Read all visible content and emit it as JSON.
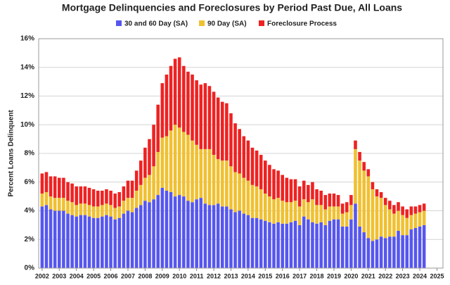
{
  "chart_data": {
    "type": "stacked_bar",
    "title": "Mortgage Delinquencies and Foreclosures by Period Past Due, All Loans",
    "y_label": "Percent Loans Delinquent",
    "legend": "top",
    "grid": true,
    "x": [
      2002,
      2002.25,
      2002.5,
      2002.75,
      2003,
      2003.25,
      2003.5,
      2003.75,
      2004,
      2004.25,
      2004.5,
      2004.75,
      2005,
      2005.25,
      2005.5,
      2005.75,
      2006,
      2006.25,
      2006.5,
      2006.75,
      2007,
      2007.25,
      2007.5,
      2007.75,
      2008,
      2008.25,
      2008.5,
      2008.75,
      2009,
      2009.25,
      2009.5,
      2009.75,
      2010,
      2010.25,
      2010.5,
      2010.75,
      2011,
      2011.25,
      2011.5,
      2011.75,
      2012,
      2012.25,
      2012.5,
      2012.75,
      2013,
      2013.25,
      2013.5,
      2013.75,
      2014,
      2014.25,
      2014.5,
      2014.75,
      2015,
      2015.25,
      2015.5,
      2015.75,
      2016,
      2016.25,
      2016.5,
      2016.75,
      2017,
      2017.25,
      2017.5,
      2017.75,
      2018,
      2018.25,
      2018.5,
      2018.75,
      2019,
      2019.25,
      2019.5,
      2019.75,
      2020,
      2020.25,
      2020.5,
      2020.75,
      2021,
      2021.25,
      2021.5,
      2021.75,
      2022,
      2022.25,
      2022.5,
      2022.75,
      2023,
      2023.25,
      2023.5,
      2023.75,
      2024,
      2024.25
    ],
    "xlim": [
      2001.8,
      2025.35
    ],
    "xticks": [
      2002,
      2003,
      2004,
      2005,
      2006,
      2007,
      2008,
      2009,
      2010,
      2011,
      2012,
      2013,
      2014,
      2015,
      2016,
      2017,
      2018,
      2019,
      2020,
      2021,
      2022,
      2023,
      2024,
      2025
    ],
    "ylim": [
      0,
      16
    ],
    "yticks": [
      {
        "value": 0,
        "label": "0%"
      },
      {
        "value": 2,
        "label": "2%"
      },
      {
        "value": 4,
        "label": "4%"
      },
      {
        "value": 6,
        "label": "6%"
      },
      {
        "value": 8,
        "label": "8%"
      },
      {
        "value": 10,
        "label": "10%"
      },
      {
        "value": 12,
        "label": "12%"
      },
      {
        "value": 14,
        "label": "14%"
      },
      {
        "value": 16,
        "label": "16%"
      }
    ],
    "series": [
      {
        "name": "30 and 60 Day (SA)",
        "color": "#5656ee",
        "values": [
          4.3,
          4.4,
          4.1,
          4.0,
          4.0,
          4.0,
          3.8,
          3.7,
          3.6,
          3.7,
          3.7,
          3.6,
          3.5,
          3.5,
          3.6,
          3.7,
          3.6,
          3.4,
          3.5,
          3.8,
          4.0,
          3.9,
          4.2,
          4.4,
          4.7,
          4.6,
          4.8,
          5.1,
          5.6,
          5.4,
          5.3,
          5.0,
          5.1,
          5.0,
          4.7,
          4.6,
          4.8,
          4.9,
          4.5,
          4.4,
          4.4,
          4.5,
          4.3,
          4.3,
          4.1,
          3.9,
          4.0,
          3.8,
          3.7,
          3.5,
          3.5,
          3.4,
          3.3,
          3.2,
          3.1,
          3.2,
          3.1,
          3.1,
          3.2,
          3.3,
          3.0,
          3.6,
          3.4,
          3.2,
          3.1,
          3.2,
          3.0,
          3.3,
          3.4,
          3.4,
          2.9,
          2.9,
          3.4,
          4.5,
          2.9,
          2.5,
          2.1,
          1.9,
          2.0,
          2.2,
          2.1,
          2.2,
          2.2,
          2.6,
          2.3,
          2.3,
          2.7,
          2.8,
          2.9,
          3.0
        ]
      },
      {
        "name": "90 Day (SA)",
        "color": "#f0c030",
        "values": [
          0.9,
          0.9,
          0.9,
          0.9,
          0.9,
          0.9,
          0.9,
          0.9,
          0.8,
          0.8,
          0.8,
          0.8,
          0.8,
          0.8,
          0.8,
          0.8,
          0.8,
          0.8,
          0.8,
          0.9,
          0.9,
          1.0,
          1.2,
          1.4,
          1.6,
          1.9,
          2.3,
          3.0,
          3.5,
          3.8,
          4.3,
          5.0,
          4.7,
          4.5,
          4.6,
          4.3,
          3.8,
          3.4,
          3.8,
          3.9,
          3.5,
          3.1,
          3.2,
          3.2,
          3.0,
          2.8,
          2.6,
          2.5,
          2.4,
          2.3,
          2.2,
          2.1,
          1.9,
          1.8,
          1.7,
          1.7,
          1.6,
          1.5,
          1.4,
          1.4,
          1.3,
          1.2,
          1.2,
          1.6,
          1.3,
          1.2,
          1.1,
          1.0,
          0.9,
          0.9,
          0.9,
          1.0,
          1.0,
          3.8,
          4.6,
          4.3,
          4.3,
          3.6,
          3.0,
          2.7,
          2.3,
          1.9,
          1.6,
          1.4,
          1.4,
          1.2,
          1.0,
          1.0,
          1.0,
          1.0
        ]
      },
      {
        "name": "Foreclosure Process",
        "color": "#ee2222",
        "values": [
          1.4,
          1.4,
          1.4,
          1.5,
          1.4,
          1.4,
          1.3,
          1.3,
          1.3,
          1.2,
          1.2,
          1.2,
          1.2,
          1.1,
          1.0,
          1.0,
          1.0,
          1.0,
          1.0,
          1.0,
          1.2,
          1.2,
          1.4,
          1.7,
          2.1,
          2.5,
          2.9,
          3.3,
          3.8,
          4.3,
          4.5,
          4.6,
          4.9,
          4.6,
          4.4,
          4.6,
          4.5,
          4.5,
          4.6,
          4.4,
          4.4,
          4.3,
          4.1,
          4.0,
          3.7,
          3.4,
          3.1,
          2.9,
          2.8,
          2.6,
          2.5,
          2.4,
          2.3,
          2.2,
          2.1,
          1.9,
          1.8,
          1.7,
          1.6,
          1.5,
          1.4,
          1.3,
          1.2,
          1.2,
          1.1,
          1.0,
          1.0,
          0.9,
          0.9,
          0.8,
          0.7,
          0.7,
          0.7,
          0.6,
          0.6,
          0.6,
          0.5,
          0.5,
          0.5,
          0.4,
          0.5,
          0.6,
          0.6,
          0.6,
          0.6,
          0.6,
          0.6,
          0.5,
          0.5,
          0.5
        ]
      }
    ]
  }
}
